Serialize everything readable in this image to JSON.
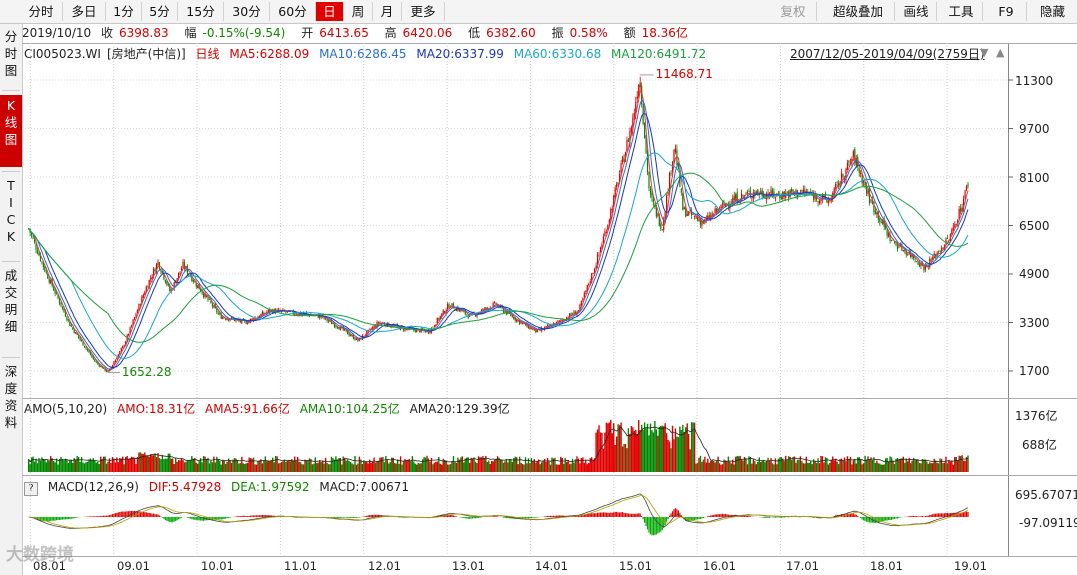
{
  "toolbar": {
    "buttons": [
      "分时",
      "多日",
      "1分",
      "5分",
      "15分",
      "30分",
      "60分",
      "日",
      "周",
      "月",
      "更多"
    ],
    "active": "日",
    "right_buttons": [
      "复权",
      "超级叠加",
      "画线",
      "工具",
      "F9",
      "隐藏"
    ],
    "disabled": "复权"
  },
  "info": {
    "date": "2019/10/10",
    "close_label": "收",
    "close": "6398.83",
    "change_label": "幅",
    "change": "-0.15%(-9.54)",
    "open_label": "开",
    "open": "6413.65",
    "high_label": "高",
    "high": "6420.06",
    "low_label": "低",
    "low": "6382.60",
    "amp_label": "振",
    "amp": "0.58%",
    "amount_label": "额",
    "amount": "18.36亿"
  },
  "sidebar": {
    "items": [
      "分时图",
      "K线图",
      "TICK",
      "成交明细",
      "深度资料"
    ],
    "active": "K线图"
  },
  "kline": {
    "code": "CI005023.WI",
    "name": "[房地产(中信)]",
    "period": "日线",
    "ma5": "MA5:6288.09",
    "ma10": "MA10:6286.45",
    "ma20": "MA20:6337.99",
    "ma60": "MA60:6330.68",
    "ma120": "MA120:6491.72",
    "range": "2007/12/05-2019/04/09(2759日)",
    "high_mark": "11468.71",
    "low_mark": "1652.28"
  },
  "amo": {
    "title": "AMO(5,10,20)",
    "amo": "AMO:18.31亿",
    "ama5": "AMA5:91.66亿",
    "ama10": "AMA10:104.25亿",
    "ama20": "AMA20:129.39亿",
    "ticks": [
      "1376亿",
      "688亿"
    ]
  },
  "macd": {
    "help": "?",
    "title": "MACD(12,26,9)",
    "dif": "DIF:5.47928",
    "dea": "DEA:1.97592",
    "macd": "MACD:7.00671",
    "ticks": [
      "695.67071",
      "-97.09119"
    ]
  },
  "watermark": "大数跨境",
  "chart_data": {
    "type": "candlestick",
    "y_ticks": [
      11300,
      9700,
      8100,
      6500,
      4900,
      3300,
      1700
    ],
    "x_labels": [
      "08.01",
      "09.01",
      "10.01",
      "11.01",
      "12.01",
      "13.01",
      "14.01",
      "15.01",
      "16.01",
      "17.01",
      "18.01",
      "19.01"
    ],
    "series": [
      {
        "name": "日线",
        "points": [
          [
            2008.0,
            6400
          ],
          [
            2008.2,
            5000
          ],
          [
            2008.5,
            3200
          ],
          [
            2008.8,
            2000
          ],
          [
            2008.95,
            1652
          ],
          [
            2009.15,
            2600
          ],
          [
            2009.4,
            4400
          ],
          [
            2009.55,
            5300
          ],
          [
            2009.7,
            4300
          ],
          [
            2009.85,
            5200
          ],
          [
            2010.0,
            4600
          ],
          [
            2010.3,
            3500
          ],
          [
            2010.6,
            3300
          ],
          [
            2010.9,
            3700
          ],
          [
            2011.2,
            3600
          ],
          [
            2011.5,
            3500
          ],
          [
            2011.75,
            3100
          ],
          [
            2011.95,
            2700
          ],
          [
            2012.2,
            3300
          ],
          [
            2012.5,
            3100
          ],
          [
            2012.8,
            3000
          ],
          [
            2013.05,
            3900
          ],
          [
            2013.3,
            3500
          ],
          [
            2013.6,
            3900
          ],
          [
            2013.9,
            3300
          ],
          [
            2014.1,
            3000
          ],
          [
            2014.35,
            3300
          ],
          [
            2014.6,
            3700
          ],
          [
            2014.8,
            5200
          ],
          [
            2014.95,
            6600
          ],
          [
            2015.1,
            8300
          ],
          [
            2015.25,
            10000
          ],
          [
            2015.33,
            11468
          ],
          [
            2015.45,
            7500
          ],
          [
            2015.6,
            6400
          ],
          [
            2015.75,
            9200
          ],
          [
            2015.85,
            7000
          ],
          [
            2016.1,
            6600
          ],
          [
            2016.4,
            7300
          ],
          [
            2016.7,
            7600
          ],
          [
            2016.95,
            7500
          ],
          [
            2017.3,
            7600
          ],
          [
            2017.6,
            7300
          ],
          [
            2017.9,
            8800
          ],
          [
            2018.1,
            7300
          ],
          [
            2018.35,
            6000
          ],
          [
            2018.6,
            5500
          ],
          [
            2018.75,
            5100
          ],
          [
            2018.9,
            5600
          ],
          [
            2019.05,
            6100
          ],
          [
            2019.2,
            7200
          ],
          [
            2019.27,
            7900
          ]
        ]
      }
    ]
  }
}
